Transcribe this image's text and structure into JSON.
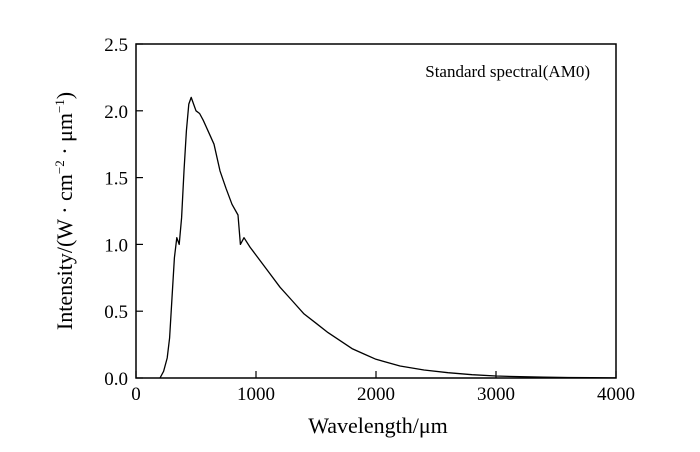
{
  "chart_data": {
    "type": "line",
    "title": "",
    "annotation": "Standard spectral(AM0)",
    "xlabel": "Wavelength/μm",
    "ylabel_prefix": "Intensity/(W · cm",
    "ylabel_exp1": "−2",
    "ylabel_mid": " · μm",
    "ylabel_exp2": "−1",
    "ylabel_suffix": ")",
    "xlim": [
      0,
      4000
    ],
    "ylim": [
      0,
      2.5
    ],
    "xticks": [
      0,
      1000,
      2000,
      3000,
      4000
    ],
    "xtick_labels": [
      "0",
      "1000",
      "2000",
      "3000",
      "4000"
    ],
    "yticks": [
      0,
      0.5,
      1.0,
      1.5,
      2.0,
      2.5
    ],
    "ytick_labels": [
      "0.0",
      "0.5",
      "1.0",
      "1.5",
      "2.0",
      "2.5"
    ],
    "grid": false,
    "legend": "none",
    "line_color": "#000000",
    "series": [
      {
        "x": [
          200,
          230,
          260,
          280,
          300,
          320,
          340,
          360,
          380,
          400,
          420,
          440,
          460,
          480,
          500,
          530,
          560,
          600,
          650,
          700,
          750,
          800,
          850,
          870,
          900,
          950,
          1000,
          1100,
          1200,
          1300,
          1400,
          1500,
          1600,
          1700,
          1800,
          1900,
          2000,
          2200,
          2400,
          2600,
          2800,
          3000,
          3200,
          3400,
          3600,
          3800,
          4000
        ],
        "y": [
          0.0,
          0.05,
          0.15,
          0.3,
          0.6,
          0.9,
          1.05,
          1.0,
          1.2,
          1.55,
          1.85,
          2.05,
          2.1,
          2.05,
          2.0,
          1.98,
          1.93,
          1.85,
          1.75,
          1.55,
          1.42,
          1.3,
          1.22,
          1.0,
          1.05,
          0.98,
          0.92,
          0.8,
          0.68,
          0.58,
          0.48,
          0.41,
          0.34,
          0.28,
          0.22,
          0.18,
          0.14,
          0.09,
          0.06,
          0.04,
          0.025,
          0.015,
          0.01,
          0.007,
          0.004,
          0.002,
          0.001
        ]
      }
    ]
  }
}
